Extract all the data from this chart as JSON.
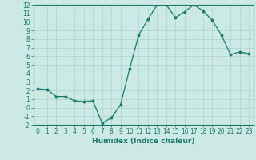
{
  "x": [
    0,
    1,
    2,
    3,
    4,
    5,
    6,
    7,
    8,
    9,
    10,
    11,
    12,
    13,
    14,
    15,
    16,
    17,
    18,
    19,
    20,
    21,
    22,
    23
  ],
  "y": [
    2.2,
    2.1,
    1.3,
    1.3,
    0.8,
    0.7,
    0.8,
    -1.8,
    -1.2,
    0.3,
    4.5,
    8.5,
    10.3,
    12.0,
    12.0,
    10.5,
    11.2,
    12.0,
    11.3,
    10.2,
    8.5,
    6.2,
    6.5,
    6.3
  ],
  "xlabel": "Humidex (Indice chaleur)",
  "ylim": [
    -2,
    12
  ],
  "xlim": [
    -0.5,
    23.5
  ],
  "yticks": [
    -2,
    -1,
    0,
    1,
    2,
    3,
    4,
    5,
    6,
    7,
    8,
    9,
    10,
    11,
    12
  ],
  "xticks": [
    0,
    1,
    2,
    3,
    4,
    5,
    6,
    7,
    8,
    9,
    10,
    11,
    12,
    13,
    14,
    15,
    16,
    17,
    18,
    19,
    20,
    21,
    22,
    23
  ],
  "line_color": "#1a7a6e",
  "marker_color": "#1a7a6e",
  "bg_color": "#cce9e4",
  "grid_color": "#aad4ce",
  "tick_fontsize": 5.5,
  "xlabel_fontsize": 6.5
}
